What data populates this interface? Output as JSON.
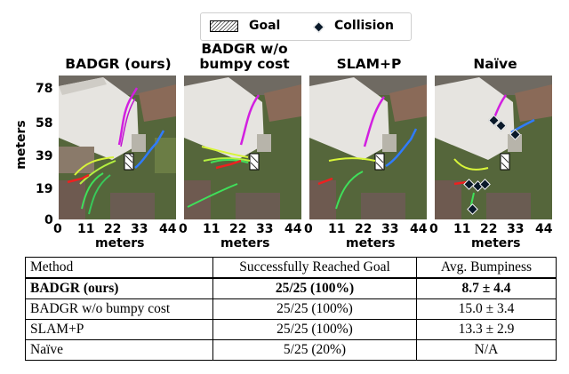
{
  "legend": {
    "goal_label": "Goal",
    "collision_label": "Collision"
  },
  "panels": [
    {
      "title": "BADGR (ours)"
    },
    {
      "title": "BADGR w/o bumpy cost"
    },
    {
      "title": "SLAM+P"
    },
    {
      "title": "Naïve"
    }
  ],
  "axes": {
    "ylabel": "meters",
    "xlabel": "meters",
    "yticks": [
      "78",
      "58",
      "39",
      "19",
      "0"
    ],
    "xticks": [
      "0",
      "11",
      "22",
      "33",
      "44"
    ]
  },
  "colors": {
    "trajectory_magenta": "#d21fe0",
    "trajectory_blue": "#2f7bff",
    "trajectory_green": "#3fe05a",
    "trajectory_yellow": "#d8f53a",
    "trajectory_red": "#ee2020",
    "collision_marker": "#0b1a2a"
  },
  "table": {
    "headers": [
      "Method",
      "Successfully Reached Goal",
      "Avg. Bumpiness"
    ],
    "rows": [
      {
        "method": "BADGR (ours)",
        "goal": "25/25 (100%)",
        "bumpiness": "8.7 ± 4.4"
      },
      {
        "method": "BADGR w/o bumpy cost",
        "goal": "25/25 (100%)",
        "bumpiness": "15.0 ± 3.4"
      },
      {
        "method": "SLAM+P",
        "goal": "25/25 (100%)",
        "bumpiness": "13.3 ± 2.9"
      },
      {
        "method": "Naïve",
        "goal": "5/25 (20%)",
        "bumpiness": "N/A"
      }
    ]
  }
}
